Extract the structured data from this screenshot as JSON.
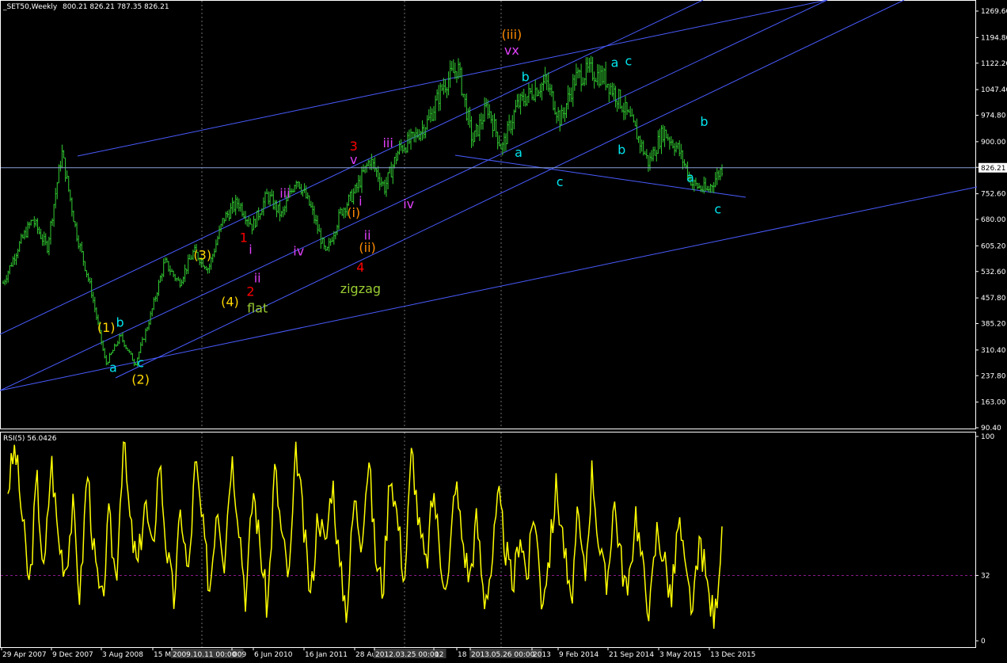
{
  "header": {
    "symbol": "_SET50,Weekly",
    "ohlc": "800.21 826.21 787.35 826.21"
  },
  "colors": {
    "background": "#000000",
    "price_bars": "#32cd32",
    "trendlines": "#4a5cff",
    "rsi_line": "#ffff00",
    "rsi_level": "#8b1a8b",
    "grid": "#707070",
    "axis_text": "#ffffff"
  },
  "chart_data": [
    {
      "type": "line",
      "title": "_SET50,Weekly",
      "series": [
        {
          "name": "_SET50,Weekly",
          "x": [
            "Apr 2007",
            "Jun 2007",
            "Sep 2007",
            "Nov 2007",
            "Dec 2007",
            "Feb 2008",
            "May 2008",
            "Aug 2008",
            "Oct 2008",
            "Dec 2008",
            "Mar 2009",
            "Jun 2009",
            "Sep 2009",
            "Dec 2009",
            "Mar 2010",
            "Jun 2010",
            "Sep 2010",
            "Nov 2010",
            "Jan 2011",
            "Mar 2011",
            "Jun 2011",
            "Jul 2011",
            "Aug 2011",
            "Oct 2011",
            "Dec 2011",
            "Mar 2012",
            "May 2012",
            "Aug 2012",
            "Oct 2012",
            "Dec 2012",
            "Feb 2013",
            "May 2013",
            "Jun 2013",
            "Aug 2013",
            "Oct 2013",
            "Dec 2013",
            "Feb 2014",
            "May 2014",
            "Aug 2014",
            "Sep 2014",
            "Oct 2014",
            "Nov 2014",
            "Jan 2015",
            "Mar 2015",
            "May 2015",
            "Jul 2015",
            "Aug 2015",
            "Oct 2015",
            "Dec 2015",
            "Dec 2015"
          ],
          "values": [
            500,
            600,
            680,
            600,
            870,
            640,
            480,
            270,
            350,
            270,
            400,
            560,
            500,
            590,
            540,
            680,
            730,
            660,
            750,
            690,
            800,
            710,
            580,
            700,
            760,
            850,
            770,
            880,
            910,
            960,
            1060,
            1110,
            900,
            1000,
            880,
            1000,
            1040,
            1070,
            960,
            1080,
            1100,
            1080,
            1020,
            940,
            840,
            930,
            880,
            780,
            760,
            826
          ]
        }
      ],
      "y_ticks": [
        "1269.60",
        "1194.80",
        "1122.20",
        "1047.40",
        "974.80",
        "900.00",
        "827.40",
        "752.60",
        "680.00",
        "605.20",
        "532.60",
        "457.80",
        "385.20",
        "310.40",
        "237.80",
        "163.00",
        "90.40"
      ],
      "ylim": [
        90.4,
        1269.6
      ],
      "current_price_label": "826.21",
      "x_ticks": [
        "29 Apr 2007",
        "9 Dec 2007",
        "3 Aug 2008",
        "15 M",
        "2009.10.11 00:00",
        "009",
        "6 Jun 2010",
        "16 Jan 2011",
        "28 Au",
        "2012.03.25 00:00",
        "12",
        "18 N",
        "2013.05.26 00:00",
        "2013",
        "9 Feb 2014",
        "21 Sep 2014",
        "3 May 2015",
        "13 Dec 2015"
      ],
      "annotations": [
        {
          "text": "(1)",
          "color": "#ffd700",
          "x": "Jul 2008",
          "y": 375
        },
        {
          "text": "b",
          "color": "#00e5ee",
          "x": "Sep 2008",
          "y": 390
        },
        {
          "text": "a",
          "color": "#00e5ee",
          "x": "Aug 2008",
          "y": 262
        },
        {
          "text": "c",
          "color": "#00e5ee",
          "x": "Dec 2008",
          "y": 275
        },
        {
          "text": "(2)",
          "color": "#ffd700",
          "x": "Dec 2008",
          "y": 228
        },
        {
          "text": "(3)",
          "color": "#ffd700",
          "x": "Sep 2009",
          "y": 580
        },
        {
          "text": "(4)",
          "color": "#ffd700",
          "x": "Jan 2010",
          "y": 448
        },
        {
          "text": "flat",
          "color": "#9acd32",
          "x": "May 2010",
          "y": 430
        },
        {
          "text": "1",
          "color": "#ff0000",
          "x": "Mar 2010",
          "y": 630
        },
        {
          "text": "i",
          "color": "#e040fb",
          "x": "Apr 2010",
          "y": 596
        },
        {
          "text": "ii",
          "color": "#e040fb",
          "x": "May 2010",
          "y": 515
        },
        {
          "text": "2",
          "color": "#ff0000",
          "x": "Apr 2010",
          "y": 477
        },
        {
          "text": "iii",
          "color": "#e040fb",
          "x": "Sep 2010",
          "y": 755
        },
        {
          "text": "iv",
          "color": "#e040fb",
          "x": "Nov 2010",
          "y": 592
        },
        {
          "text": "3",
          "color": "#ff0000",
          "x": "Jul 2011",
          "y": 888
        },
        {
          "text": "v",
          "color": "#e040fb",
          "x": "Jul 2011",
          "y": 850
        },
        {
          "text": "(i)",
          "color": "#ff8c00",
          "x": "Jul 2011",
          "y": 700
        },
        {
          "text": "i",
          "color": "#e040fb",
          "x": "Aug 2011",
          "y": 733
        },
        {
          "text": "ii",
          "color": "#e040fb",
          "x": "Sep 2011",
          "y": 636
        },
        {
          "text": "(ii)",
          "color": "#ff8c00",
          "x": "Sep 2011",
          "y": 601
        },
        {
          "text": "4",
          "color": "#ff0000",
          "x": "Aug 2011",
          "y": 545
        },
        {
          "text": "zigzag",
          "color": "#9acd32",
          "x": "Aug 2011",
          "y": 485
        },
        {
          "text": "iii",
          "color": "#e040fb",
          "x": "Dec 2011",
          "y": 898
        },
        {
          "text": "iv",
          "color": "#e040fb",
          "x": "Mar 2012",
          "y": 725
        },
        {
          "text": "(iii)",
          "color": "#ff8c00",
          "x": "Jun 2013",
          "y": 1205
        },
        {
          "text": "vx",
          "color": "#e040fb",
          "x": "Jun 2013",
          "y": 1160
        },
        {
          "text": "b",
          "color": "#00e5ee",
          "x": "Aug 2013",
          "y": 1085
        },
        {
          "text": "a",
          "color": "#00e5ee",
          "x": "Jul 2013",
          "y": 870
        },
        {
          "text": "c",
          "color": "#00e5ee",
          "x": "Jan 2014",
          "y": 788
        },
        {
          "text": "a",
          "color": "#00e5ee",
          "x": "Sep 2014",
          "y": 1125
        },
        {
          "text": "c",
          "color": "#00e5ee",
          "x": "Nov 2014",
          "y": 1130
        },
        {
          "text": "b",
          "color": "#00e5ee",
          "x": "Oct 2014",
          "y": 878
        },
        {
          "text": "b",
          "color": "#00e5ee",
          "x": "Oct 2015",
          "y": 958
        },
        {
          "text": "a",
          "color": "#00e5ee",
          "x": "Aug 2015",
          "y": 800
        },
        {
          "text": "c",
          "color": "#00e5ee",
          "x": "Dec 2015",
          "y": 710
        }
      ]
    },
    {
      "type": "line",
      "title": "RSI(5) 56.0426",
      "series": [
        {
          "name": "RSI(5)",
          "values": [
            75,
            95,
            60,
            25,
            80,
            30,
            90,
            50,
            35,
            65,
            20,
            85,
            40,
            15,
            60,
            30,
            99,
            55,
            35,
            70,
            40,
            90,
            45,
            20,
            65,
            30,
            88,
            55,
            25,
            70,
            40,
            92,
            60,
            20,
            75,
            45,
            15,
            85,
            50,
            30,
            95,
            55,
            20,
            65,
            45,
            80,
            35,
            15,
            70,
            50,
            90,
            40,
            25,
            85,
            60,
            30,
            95,
            55,
            35,
            75,
            40,
            25,
            80,
            50,
            30,
            60,
            20,
            35,
            70,
            45,
            25,
            55,
            30,
            65,
            20,
            40,
            75,
            50,
            15,
            60,
            30,
            85,
            45,
            25,
            70,
            40,
            20,
            65,
            35,
            15,
            55,
            40,
            20,
            60,
            30,
            15,
            50,
            25,
            10,
            56
          ]
        }
      ],
      "y_ticks": [
        "100",
        "32",
        "0"
      ],
      "ylim": [
        0,
        100
      ],
      "level": 32,
      "grid": true
    }
  ]
}
